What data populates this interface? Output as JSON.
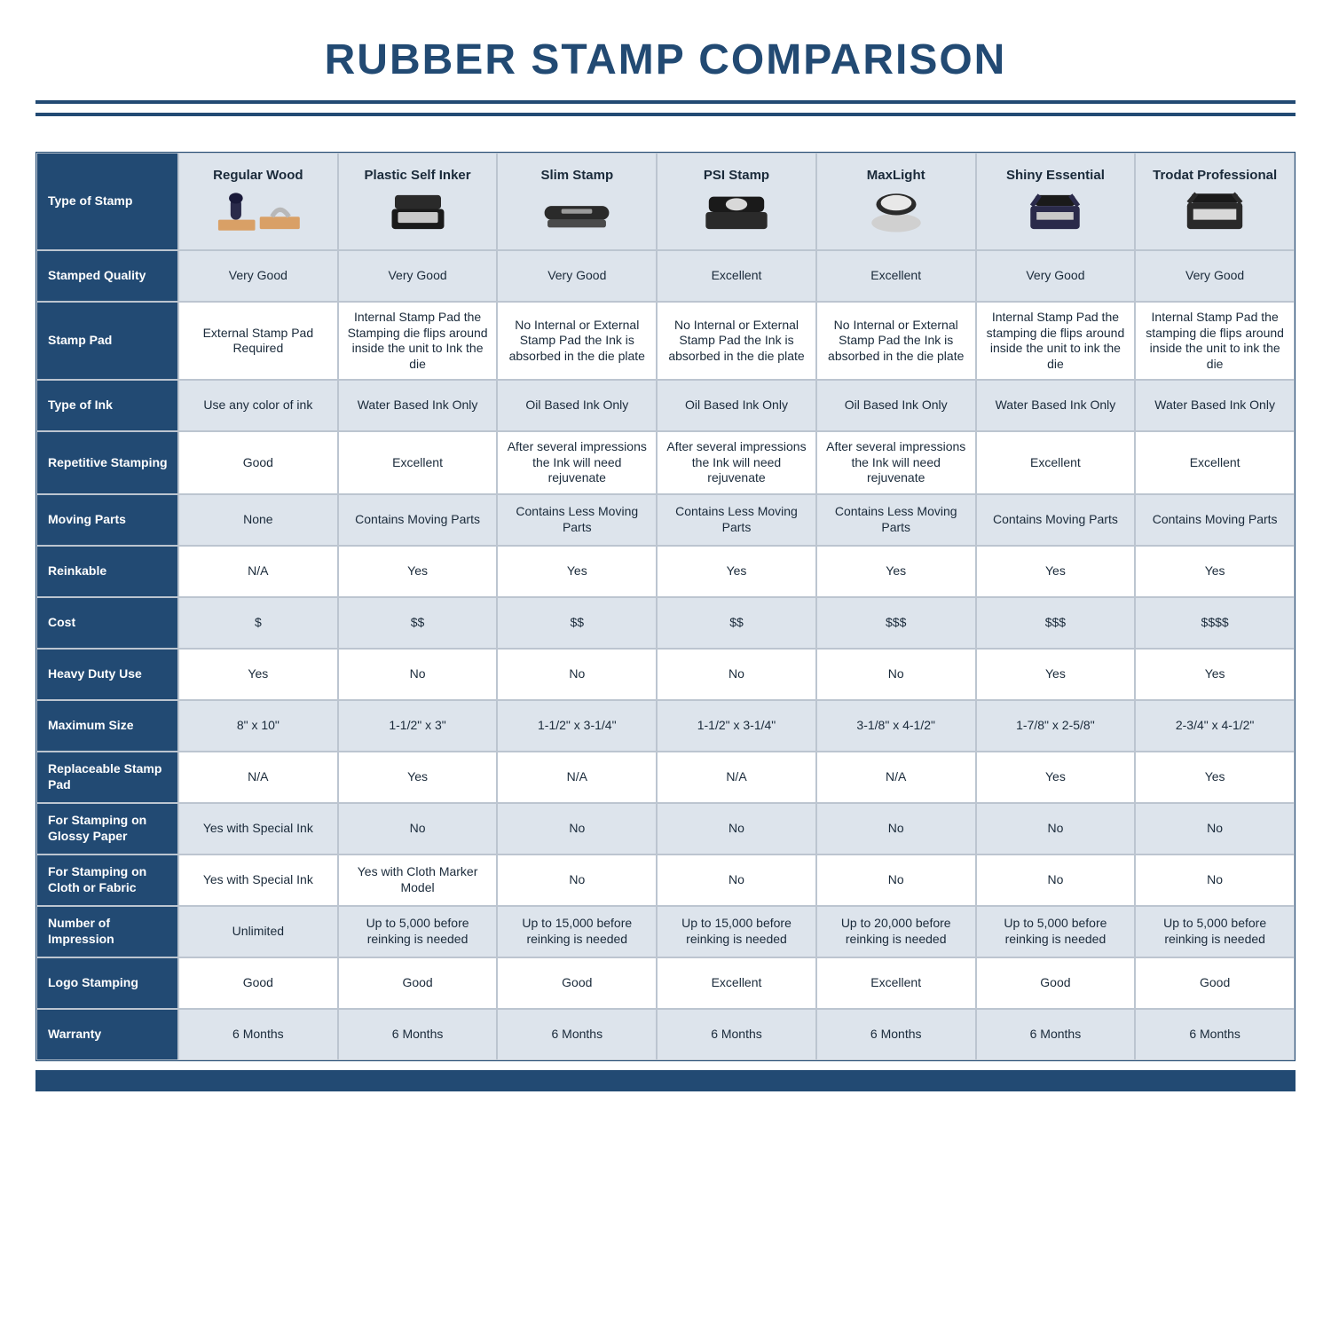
{
  "title": "RUBBER STAMP COMPARISON",
  "colors": {
    "brand": "#224a73",
    "altRow": "#dde4ec",
    "border": "#bcc5d0",
    "text": "#1a2a3a",
    "white": "#ffffff",
    "wood": "#d9a066",
    "darkStamp": "#2a2a2a",
    "grayStamp": "#888888"
  },
  "columns": [
    "Regular Wood",
    "Plastic Self Inker",
    "Slim Stamp",
    "PSI Stamp",
    "MaxLight",
    "Shiny Essential",
    "Trodat Professional"
  ],
  "rowLabels": [
    "Type of Stamp",
    "Stamped Quality",
    "Stamp Pad",
    "Type of Ink",
    "Repetitive Stamping",
    "Moving Parts",
    "Reinkable",
    "Cost",
    "Heavy Duty Use",
    "Maximum Size",
    "Replaceable Stamp Pad",
    "For Stamping on Glossy Paper",
    "For Stamping on Cloth or Fabric",
    "Number of Impression",
    "Logo Stamping",
    "Warranty"
  ],
  "rows": [
    [
      "Very Good",
      "Very Good",
      "Very Good",
      "Excellent",
      "Excellent",
      "Very Good",
      "Very Good"
    ],
    [
      "External Stamp Pad Required",
      "Internal Stamp Pad the Stamping die flips around inside the unit to Ink the die",
      "No Internal or External Stamp Pad the Ink is absorbed in the die plate",
      "No Internal or External Stamp Pad the Ink is absorbed in the die plate",
      "No Internal or External Stamp Pad the Ink is absorbed in the die plate",
      "Internal Stamp Pad the stamping die flips around inside the unit to ink the die",
      "Internal Stamp Pad the stamping die flips around inside the unit to ink the die"
    ],
    [
      "Use any color of ink",
      "Water Based Ink Only",
      "Oil Based Ink Only",
      "Oil Based Ink Only",
      "Oil Based Ink Only",
      "Water Based Ink Only",
      "Water Based Ink Only"
    ],
    [
      "Good",
      "Excellent",
      "After several impressions the Ink will need rejuvenate",
      "After several impressions the Ink will need rejuvenate",
      "After several impressions the Ink will need rejuvenate",
      "Excellent",
      "Excellent"
    ],
    [
      "None",
      "Contains Moving Parts",
      "Contains Less Moving Parts",
      "Contains Less Moving Parts",
      "Contains Less Moving Parts",
      "Contains Moving Parts",
      "Contains Moving Parts"
    ],
    [
      "N/A",
      "Yes",
      "Yes",
      "Yes",
      "Yes",
      "Yes",
      "Yes"
    ],
    [
      "$",
      "$$",
      "$$",
      "$$",
      "$$$",
      "$$$",
      "$$$$"
    ],
    [
      "Yes",
      "No",
      "No",
      "No",
      "No",
      "Yes",
      "Yes"
    ],
    [
      "8\" x 10\"",
      "1-1/2\" x 3\"",
      "1-1/2\" x 3-1/4\"",
      "1-1/2\" x 3-1/4\"",
      "3-1/8\" x 4-1/2\"",
      "1-7/8\" x 2-5/8\"",
      "2-3/4\" x 4-1/2\""
    ],
    [
      "N/A",
      "Yes",
      "N/A",
      "N/A",
      "N/A",
      "Yes",
      "Yes"
    ],
    [
      "Yes with Special Ink",
      "No",
      "No",
      "No",
      "No",
      "No",
      "No"
    ],
    [
      "Yes with Special Ink",
      "Yes with Cloth Marker Model",
      "No",
      "No",
      "No",
      "No",
      "No"
    ],
    [
      "Unlimited",
      "Up to 5,000 before reinking is needed",
      "Up to 15,000 before reinking is needed",
      "Up to 15,000 before reinking is needed",
      "Up to 20,000 before reinking is needed",
      "Up to 5,000 before reinking is needed",
      "Up to 5,000 before reinking is needed"
    ],
    [
      "Good",
      "Good",
      "Good",
      "Excellent",
      "Excellent",
      "Good",
      "Good"
    ],
    [
      "6 Months",
      "6 Months",
      "6 Months",
      "6 Months",
      "6 Months",
      "6 Months",
      "6 Months"
    ]
  ],
  "altRowIndices": [
    0,
    2,
    4,
    6,
    8,
    10,
    12,
    14
  ],
  "layout": {
    "labelColWidth": 160,
    "headerRowHeight": 110,
    "bodyRowMinHeight": 58,
    "fontSizeTitle": 48,
    "fontSizeHeader": 15,
    "fontSizeBody": 14
  }
}
